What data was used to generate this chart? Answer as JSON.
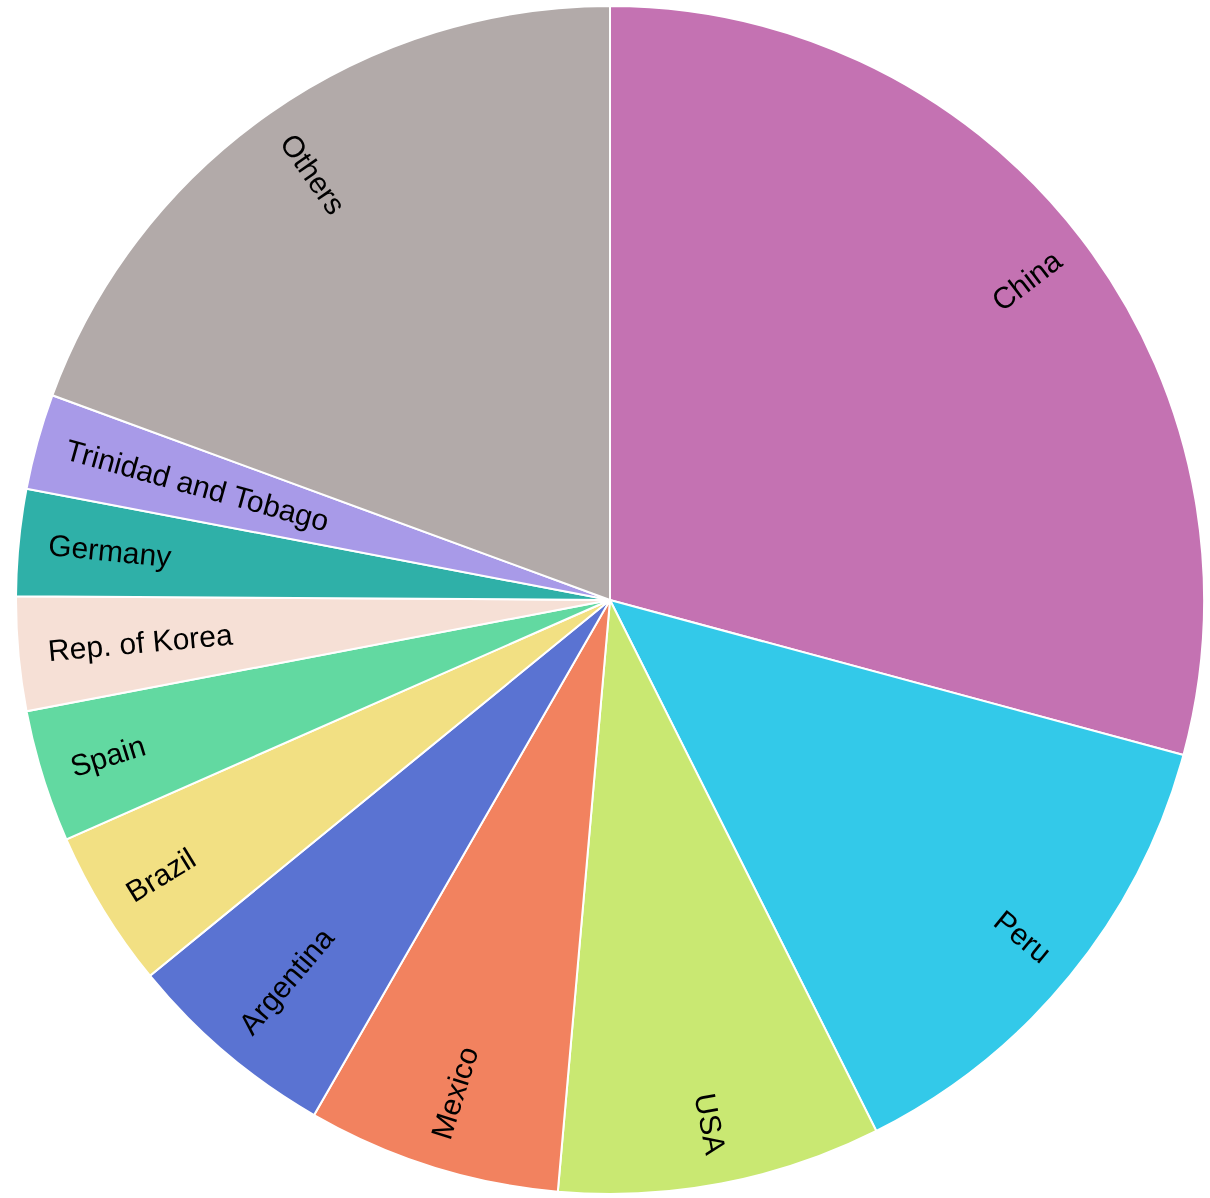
{
  "chart_data": {
    "type": "pie",
    "categories": [
      "China",
      "Peru",
      "USA",
      "Mexico",
      "Argentina",
      "Brazil",
      "Spain",
      "Rep. of Korea",
      "Germany",
      "Trinidad and Tobago",
      "Others"
    ],
    "values": [
      29.2,
      13.4,
      8.8,
      6.9,
      5.8,
      4.3,
      3.6,
      3.1,
      2.9,
      2.6,
      19.4
    ],
    "colors": [
      "#c472b2",
      "#33c9e9",
      "#c9e872",
      "#f2825f",
      "#5a73d2",
      "#f2e083",
      "#62d9a1",
      "#f6e0d6",
      "#2fb0a8",
      "#a89ae8",
      "#b2aaa9"
    ]
  }
}
